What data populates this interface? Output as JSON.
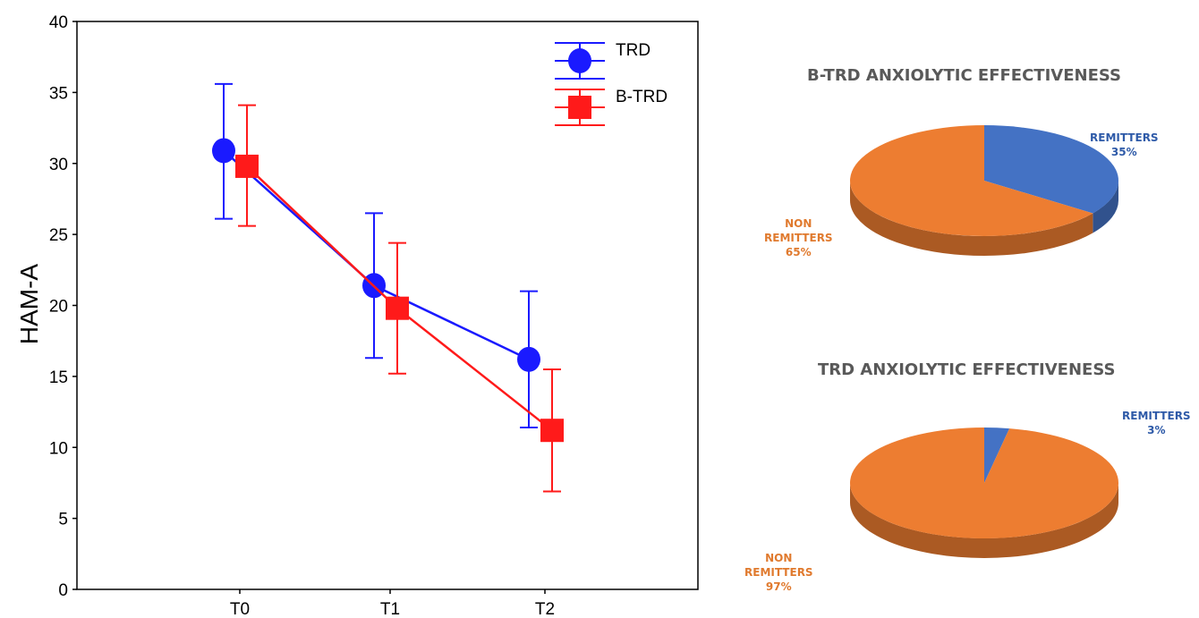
{
  "chart_data": [
    {
      "type": "line",
      "ylabel": "HAM-A",
      "xlabel": "",
      "categories": [
        "T0",
        "T1",
        "T2"
      ],
      "ylim": [
        0,
        40
      ],
      "yticks": [
        0,
        5,
        10,
        15,
        20,
        25,
        30,
        35,
        40
      ],
      "grid": false,
      "legend": "top-right",
      "series": [
        {
          "name": "TRD",
          "color": "#1a1aff",
          "marker": "circle",
          "values": [
            30.9,
            21.4,
            16.2
          ],
          "err_low": [
            26.1,
            16.3,
            11.4
          ],
          "err_high": [
            35.6,
            26.5,
            21.0
          ]
        },
        {
          "name": "B-TRD",
          "color": "#ff1a1a",
          "marker": "square",
          "values": [
            29.8,
            19.8,
            11.2
          ],
          "err_low": [
            25.6,
            15.2,
            6.9
          ],
          "err_high": [
            34.1,
            24.4,
            15.5
          ]
        }
      ]
    },
    {
      "type": "pie",
      "title": "B-TRD ANXIOLYTIC EFFECTIVENESS",
      "slices": [
        {
          "label_line1": "REMITTERS",
          "label_line2": "35%",
          "value": 35,
          "color": "#4472c4"
        },
        {
          "label_line1": "NON",
          "label_line2": "REMITTERS",
          "label_line3": "65%",
          "value": 65,
          "color": "#ed7d31"
        }
      ]
    },
    {
      "type": "pie",
      "title": "TRD ANXIOLYTIC EFFECTIVENESS",
      "slices": [
        {
          "label_line1": "REMITTERS",
          "label_line2": "3%",
          "value": 3,
          "color": "#4472c4"
        },
        {
          "label_line1": "NON",
          "label_line2": "REMITTERS",
          "label_line3": "97%",
          "value": 97,
          "color": "#ed7d31"
        }
      ]
    }
  ]
}
